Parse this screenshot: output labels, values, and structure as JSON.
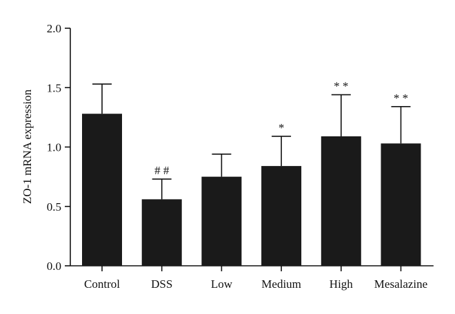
{
  "chart_data": {
    "type": "bar",
    "title": "",
    "xlabel": "",
    "ylabel": "ZO-1 mRNA expression",
    "ylim": [
      0,
      2.0
    ],
    "yticks": [
      "0.0",
      "0.5",
      "1.0",
      "1.5",
      "2.0"
    ],
    "ytick_values": [
      0,
      0.5,
      1.0,
      1.5,
      2.0
    ],
    "categories": [
      "Control",
      "DSS",
      "Low",
      "Medium",
      "High",
      "Mesalazine"
    ],
    "values": [
      1.28,
      0.56,
      0.75,
      0.84,
      1.09,
      1.03
    ],
    "error_upper": [
      0.25,
      0.17,
      0.19,
      0.25,
      0.35,
      0.31
    ],
    "significance": [
      "",
      "##",
      "",
      "*",
      "**",
      "**"
    ],
    "bar_color": "#1a1a1a",
    "grid": false,
    "legend": "none"
  }
}
